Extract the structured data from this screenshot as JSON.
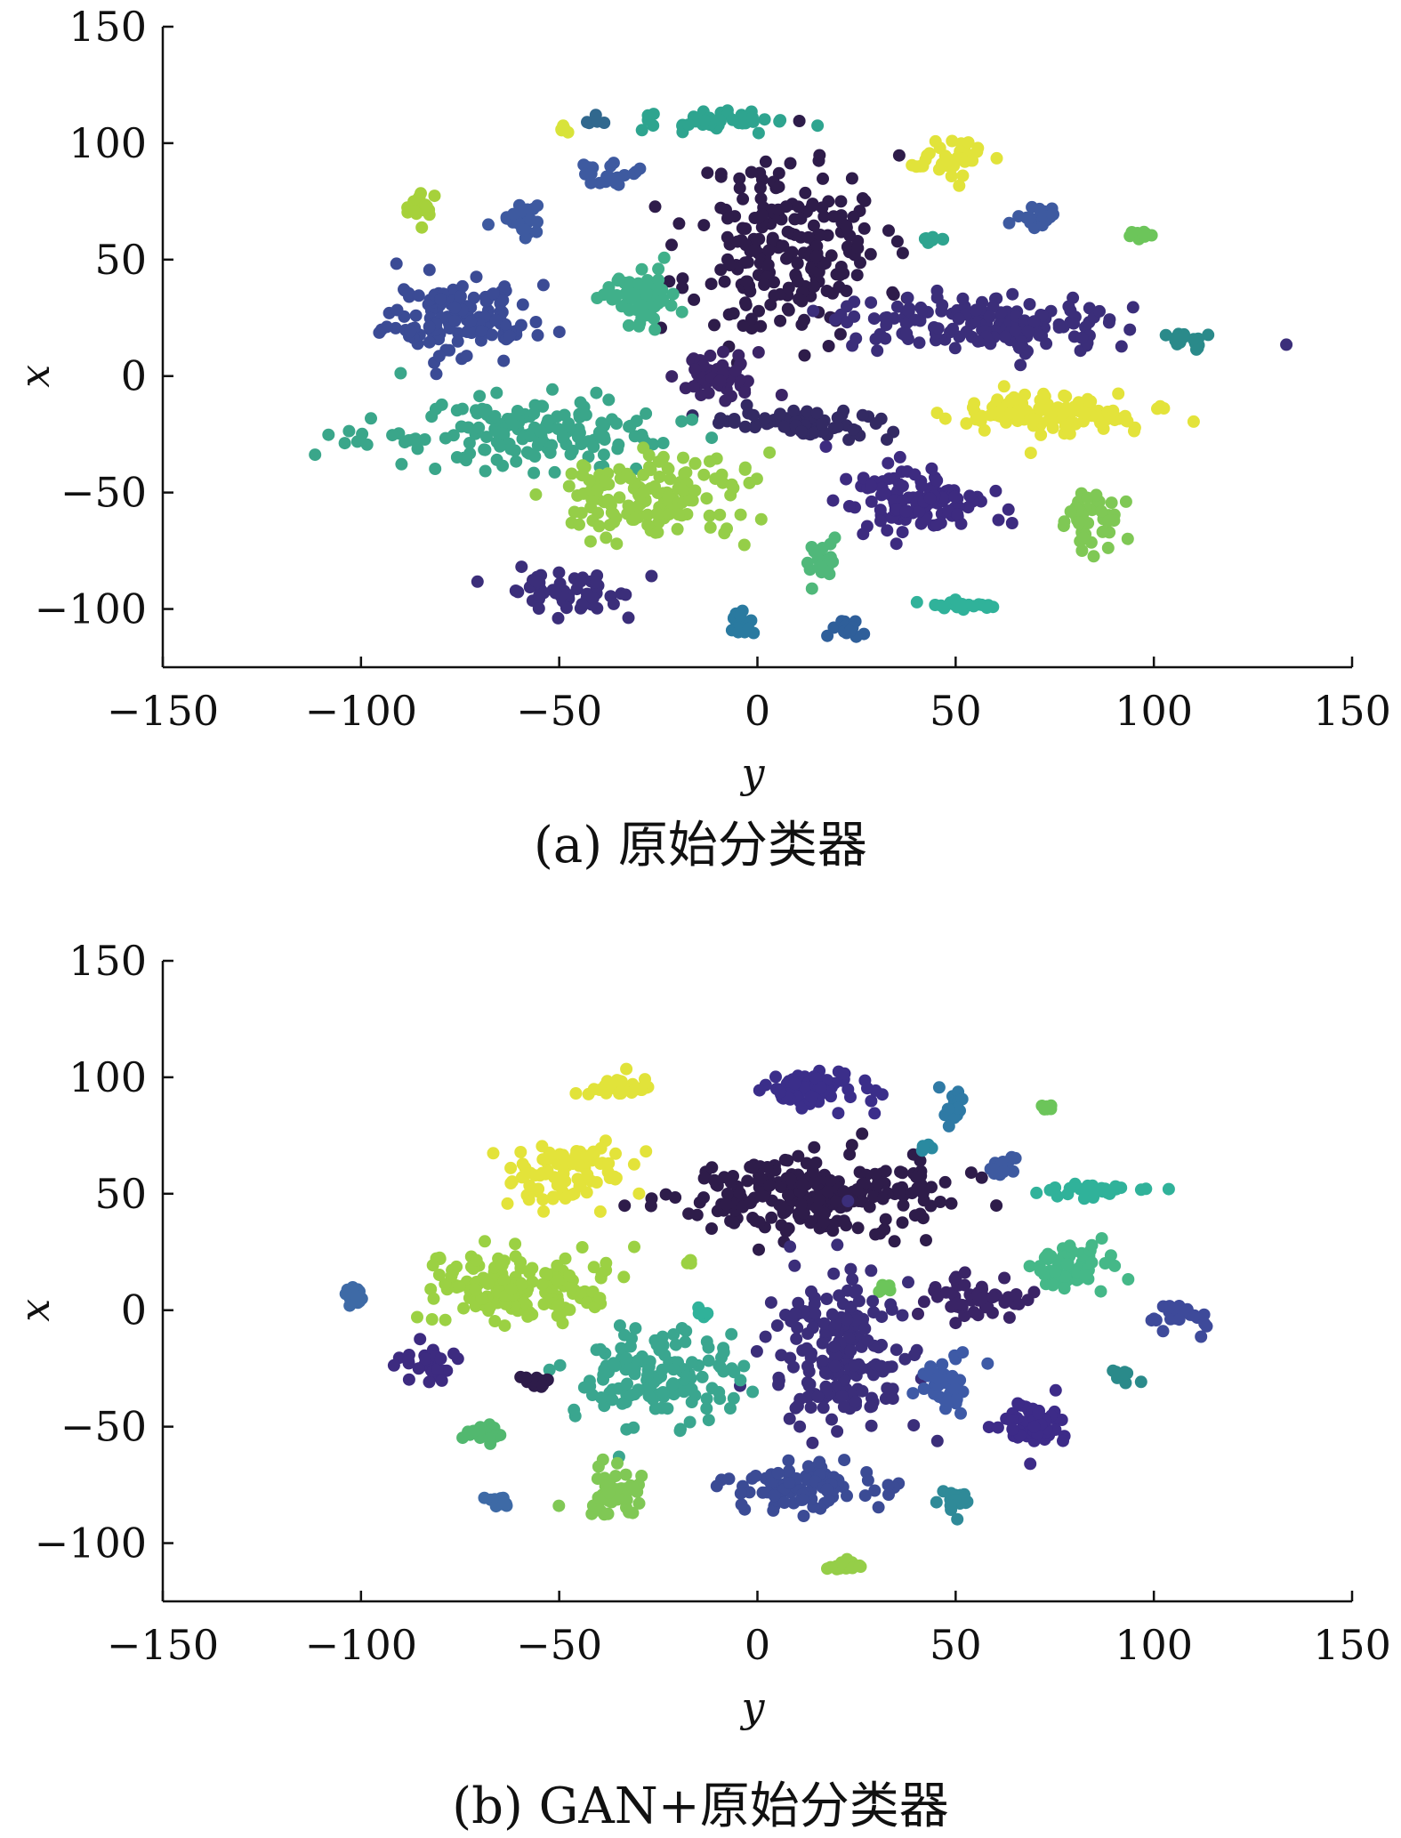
{
  "chart_data": [
    {
      "type": "scatter",
      "caption": "(a) 原始分类器",
      "xlabel": "y",
      "ylabel": "x",
      "xlim": [
        -150,
        150
      ],
      "ylim": [
        -125,
        150
      ],
      "xticks": [
        "−150",
        "−100",
        "−50",
        "0",
        "50",
        "100",
        "150"
      ],
      "yticks": [
        "−100",
        "−50",
        "0",
        "50",
        "100",
        "150"
      ],
      "grid": false,
      "colormap": "viridis",
      "clusters": [
        {
          "cx": 8,
          "cy": 55,
          "sx": 12,
          "sy": 20,
          "n": 220,
          "color": "#2e1c4a"
        },
        {
          "cx": -75,
          "cy": 25,
          "sx": 9,
          "sy": 8,
          "n": 140,
          "color": "#3b4b95"
        },
        {
          "cx": -30,
          "cy": 35,
          "sx": 5,
          "sy": 6,
          "n": 70,
          "color": "#40b08a"
        },
        {
          "cx": -60,
          "cy": 68,
          "sx": 3,
          "sy": 4,
          "n": 25,
          "color": "#3e5aa0"
        },
        {
          "cx": -38,
          "cy": 87,
          "sx": 3,
          "sy": 3,
          "n": 22,
          "color": "#3e5aa0"
        },
        {
          "cx": -85,
          "cy": 73,
          "sx": 1.5,
          "sy": 4,
          "n": 18,
          "color": "#a6d13b"
        },
        {
          "cx": -49,
          "cy": 106,
          "sx": 1,
          "sy": 1,
          "n": 5,
          "color": "#d8e33a"
        },
        {
          "cx": -41,
          "cy": 109,
          "sx": 1,
          "sy": 1,
          "n": 5,
          "color": "#31688e"
        },
        {
          "cx": -10,
          "cy": 110,
          "sx": 9,
          "sy": 2.5,
          "n": 40,
          "color": "#2ea48f"
        },
        {
          "cx": 48,
          "cy": 93,
          "sx": 4,
          "sy": 4,
          "n": 35,
          "color": "#e1e33a"
        },
        {
          "cx": 72,
          "cy": 68,
          "sx": 3,
          "sy": 2,
          "n": 20,
          "color": "#3e5aa0"
        },
        {
          "cx": 44,
          "cy": 59,
          "sx": 1.5,
          "sy": 1.5,
          "n": 8,
          "color": "#2ea48f"
        },
        {
          "cx": 97,
          "cy": 61,
          "sx": 1.5,
          "sy": 1.5,
          "n": 8,
          "color": "#6cc55a"
        },
        {
          "cx": 55,
          "cy": 23,
          "sx": 17,
          "sy": 6,
          "n": 150,
          "color": "#3b2e7a"
        },
        {
          "cx": 106,
          "cy": 15,
          "sx": 3,
          "sy": 2,
          "n": 18,
          "color": "#2a8a8a"
        },
        {
          "cx": -9,
          "cy": 0,
          "sx": 5,
          "sy": 5,
          "n": 55,
          "color": "#3b2466"
        },
        {
          "cx": 14,
          "cy": -20,
          "sx": 12,
          "sy": 3,
          "n": 70,
          "color": "#332a63"
        },
        {
          "cx": -58,
          "cy": -25,
          "sx": 20,
          "sy": 7,
          "n": 170,
          "color": "#3aa68a"
        },
        {
          "cx": 74,
          "cy": -17,
          "sx": 12,
          "sy": 5,
          "n": 120,
          "color": "#e3e33a"
        },
        {
          "cx": -27,
          "cy": -52,
          "sx": 11,
          "sy": 9,
          "n": 150,
          "color": "#95ce48"
        },
        {
          "cx": 42,
          "cy": -54,
          "sx": 8,
          "sy": 7,
          "n": 120,
          "color": "#3d2b80"
        },
        {
          "cx": 84,
          "cy": -62,
          "sx": 4,
          "sy": 7,
          "n": 45,
          "color": "#7fc855"
        },
        {
          "cx": -48,
          "cy": -92,
          "sx": 8,
          "sy": 4,
          "n": 60,
          "color": "#3b2e7a"
        },
        {
          "cx": 16,
          "cy": -80,
          "sx": 2,
          "sy": 4,
          "n": 22,
          "color": "#50b87a"
        },
        {
          "cx": 50,
          "cy": -99,
          "sx": 4,
          "sy": 1.5,
          "n": 20,
          "color": "#30b29a"
        },
        {
          "cx": -4,
          "cy": -105,
          "sx": 1.5,
          "sy": 4,
          "n": 18,
          "color": "#2a7aa0"
        },
        {
          "cx": 23,
          "cy": -108,
          "sx": 2,
          "sy": 2,
          "n": 14,
          "color": "#2f5f9a"
        }
      ]
    },
    {
      "type": "scatter",
      "caption": "(b) GAN+原始分类器",
      "xlabel": "y",
      "ylabel": "x",
      "xlim": [
        -150,
        150
      ],
      "ylim": [
        -125,
        150
      ],
      "xticks": [
        "−150",
        "−100",
        "−50",
        "0",
        "50",
        "100",
        "150"
      ],
      "yticks": [
        "−100",
        "−50",
        "0",
        "50",
        "100",
        "150"
      ],
      "grid": false,
      "colormap": "viridis",
      "clusters": [
        {
          "cx": 13,
          "cy": 95,
          "sx": 7,
          "sy": 4,
          "n": 70,
          "color": "#3b2e8a"
        },
        {
          "cx": 12,
          "cy": 50,
          "sx": 17,
          "sy": 8,
          "n": 230,
          "color": "#2e1c4a"
        },
        {
          "cx": -35,
          "cy": 95,
          "sx": 4,
          "sy": 2.5,
          "n": 30,
          "color": "#e1e33a"
        },
        {
          "cx": -48,
          "cy": 58,
          "sx": 8,
          "sy": 7,
          "n": 90,
          "color": "#e3e33a"
        },
        {
          "cx": -60,
          "cy": 10,
          "sx": 12,
          "sy": 8,
          "n": 170,
          "color": "#9bd143"
        },
        {
          "cx": -101,
          "cy": 7,
          "sx": 1.5,
          "sy": 3,
          "n": 15,
          "color": "#3e6aa6"
        },
        {
          "cx": 49,
          "cy": 88,
          "sx": 1.5,
          "sy": 3,
          "n": 15,
          "color": "#2f7aa5"
        },
        {
          "cx": 43,
          "cy": 70,
          "sx": 1,
          "sy": 1,
          "n": 5,
          "color": "#2a8aa0"
        },
        {
          "cx": 61,
          "cy": 62,
          "sx": 3,
          "sy": 2,
          "n": 18,
          "color": "#3e5aa0"
        },
        {
          "cx": 73,
          "cy": 87,
          "sx": 1.2,
          "sy": 1.2,
          "n": 7,
          "color": "#6cc55a"
        },
        {
          "cx": 86,
          "cy": 52,
          "sx": 7,
          "sy": 1.5,
          "n": 30,
          "color": "#30b29a"
        },
        {
          "cx": 80,
          "cy": 18,
          "sx": 5,
          "sy": 5,
          "n": 60,
          "color": "#45b888"
        },
        {
          "cx": 54,
          "cy": 5,
          "sx": 6,
          "sy": 4,
          "n": 50,
          "color": "#3a2466"
        },
        {
          "cx": 106,
          "cy": -3,
          "sx": 3,
          "sy": 3,
          "n": 25,
          "color": "#3e4a9a"
        },
        {
          "cx": 32,
          "cy": 10,
          "sx": 1,
          "sy": 1,
          "n": 5,
          "color": "#6cc55a"
        },
        {
          "cx": -17,
          "cy": 20,
          "sx": 1,
          "sy": 1,
          "n": 5,
          "color": "#9bd143"
        },
        {
          "cx": 20,
          "cy": -18,
          "sx": 9,
          "sy": 16,
          "n": 190,
          "color": "#3b2e7a"
        },
        {
          "cx": -25,
          "cy": -30,
          "sx": 10,
          "sy": 10,
          "n": 140,
          "color": "#3aa68f"
        },
        {
          "cx": -14,
          "cy": 0,
          "sx": 1.5,
          "sy": 1.5,
          "n": 7,
          "color": "#30b29a"
        },
        {
          "cx": -83,
          "cy": -24,
          "sx": 4,
          "sy": 4,
          "n": 30,
          "color": "#3d2b80"
        },
        {
          "cx": -56,
          "cy": -30,
          "sx": 3,
          "sy": 1.5,
          "n": 15,
          "color": "#2e1c4a"
        },
        {
          "cx": -69,
          "cy": -53,
          "sx": 3,
          "sy": 2,
          "n": 22,
          "color": "#52b86f"
        },
        {
          "cx": 48,
          "cy": -32,
          "sx": 4,
          "sy": 6,
          "n": 45,
          "color": "#3e5aa6"
        },
        {
          "cx": 93,
          "cy": -28,
          "sx": 2,
          "sy": 2,
          "n": 10,
          "color": "#2a8a8a"
        },
        {
          "cx": 70,
          "cy": -50,
          "sx": 4,
          "sy": 5,
          "n": 55,
          "color": "#3d2b88"
        },
        {
          "cx": 12,
          "cy": -76,
          "sx": 10,
          "sy": 5,
          "n": 100,
          "color": "#3b4b95"
        },
        {
          "cx": -37,
          "cy": -80,
          "sx": 4,
          "sy": 6,
          "n": 45,
          "color": "#80c855"
        },
        {
          "cx": -65,
          "cy": -82,
          "sx": 1.5,
          "sy": 2,
          "n": 12,
          "color": "#3e6aa6"
        },
        {
          "cx": 50,
          "cy": -82,
          "sx": 2,
          "sy": 3,
          "n": 20,
          "color": "#2f8a98"
        },
        {
          "cx": 22,
          "cy": -110,
          "sx": 4,
          "sy": 1.5,
          "n": 18,
          "color": "#95ce48"
        }
      ]
    }
  ]
}
